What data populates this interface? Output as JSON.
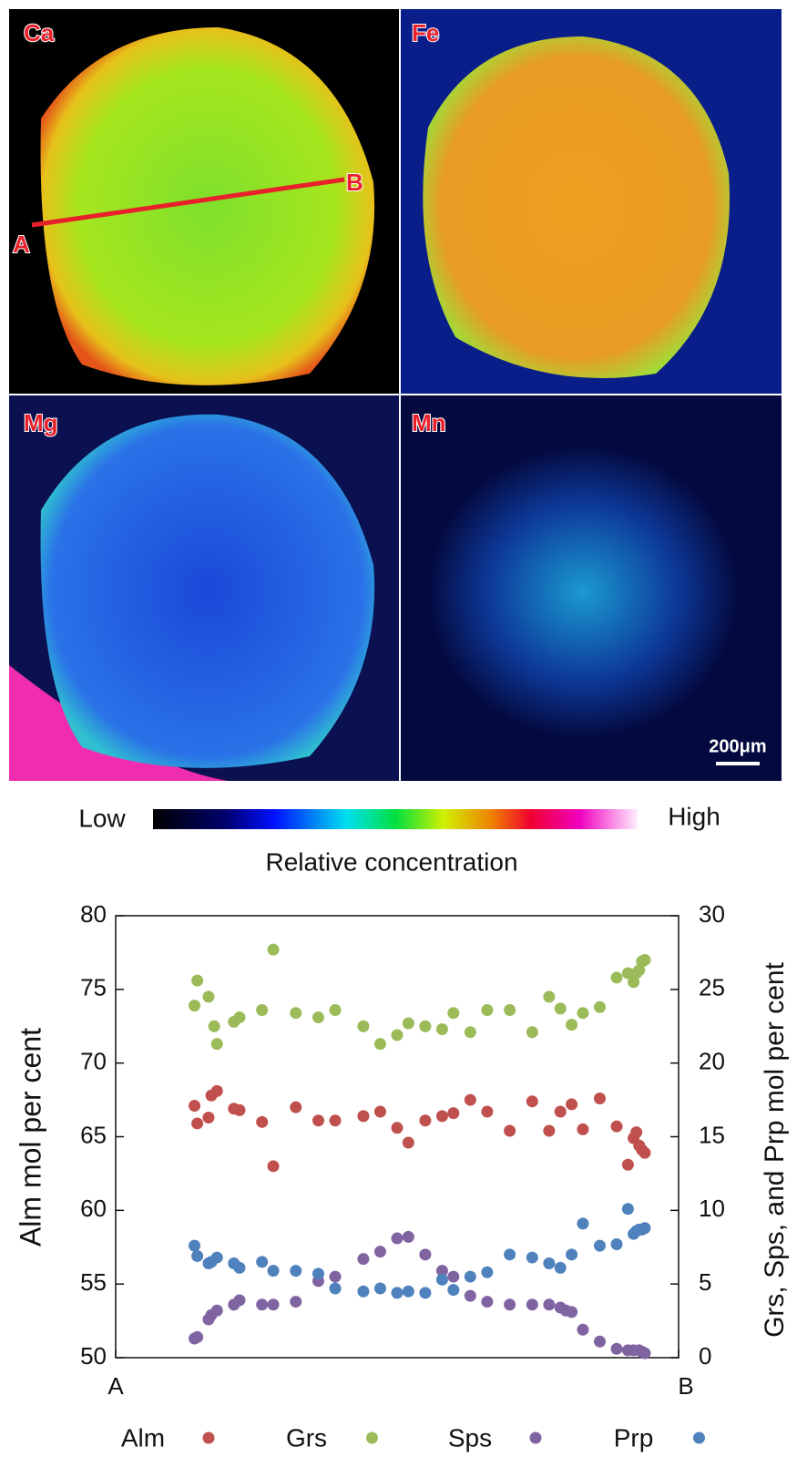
{
  "maps": {
    "panels": [
      {
        "label": "Ca"
      },
      {
        "label": "Fe"
      },
      {
        "label": "Mg"
      },
      {
        "label": "Mn"
      }
    ],
    "profile_start": "A",
    "profile_end": "B",
    "scale_bar": "200μm"
  },
  "colorbar": {
    "low": "Low",
    "high": "High",
    "label": "Relative concentration"
  },
  "chart_data": {
    "type": "scatter",
    "ylabel": "Alm mol per cent",
    "y2label": "Grs, Sps, and Prp mol per cent",
    "xlim": [
      0,
      1
    ],
    "xticks": [
      {
        "value": 0,
        "label": "A"
      },
      {
        "value": 1,
        "label": "B"
      }
    ],
    "ylim": [
      50,
      80
    ],
    "yticks": [
      50,
      55,
      60,
      65,
      70,
      75,
      80
    ],
    "y2lim": [
      0,
      30
    ],
    "y2ticks": [
      0,
      5,
      10,
      15,
      20,
      25,
      30
    ],
    "legend": "bottom",
    "series": [
      {
        "name": "Alm",
        "color": "#c0504d",
        "x": [
          0.14,
          0.145,
          0.165,
          0.17,
          0.18,
          0.21,
          0.22,
          0.26,
          0.28,
          0.32,
          0.36,
          0.39,
          0.44,
          0.47,
          0.5,
          0.52,
          0.55,
          0.58,
          0.6,
          0.63,
          0.66,
          0.7,
          0.74,
          0.77,
          0.79,
          0.81,
          0.83,
          0.86,
          0.89,
          0.91,
          0.92,
          0.925,
          0.93,
          0.935,
          0.94
        ],
        "values": [
          67.1,
          65.9,
          66.3,
          67.8,
          68.1,
          66.9,
          66.8,
          66.0,
          63.0,
          67.0,
          66.1,
          66.1,
          66.4,
          66.7,
          65.6,
          64.6,
          66.1,
          66.4,
          66.6,
          67.5,
          66.7,
          65.4,
          67.4,
          65.4,
          66.7,
          67.2,
          65.5,
          67.6,
          65.7,
          63.1,
          64.9,
          65.3,
          64.4,
          64.1,
          63.9
        ]
      },
      {
        "name": "Grs",
        "color": "#9bbb59",
        "axis": "y2",
        "x": [
          0.14,
          0.145,
          0.165,
          0.175,
          0.18,
          0.21,
          0.22,
          0.26,
          0.28,
          0.32,
          0.36,
          0.39,
          0.44,
          0.47,
          0.5,
          0.52,
          0.55,
          0.58,
          0.6,
          0.63,
          0.66,
          0.7,
          0.74,
          0.77,
          0.79,
          0.81,
          0.83,
          0.86,
          0.89,
          0.91,
          0.92,
          0.925,
          0.93,
          0.935,
          0.94
        ],
        "values": [
          23.9,
          25.6,
          24.5,
          22.5,
          21.3,
          22.8,
          23.1,
          23.6,
          27.7,
          23.4,
          23.1,
          23.6,
          22.5,
          21.3,
          21.9,
          22.7,
          22.5,
          22.3,
          23.4,
          22.1,
          23.6,
          23.6,
          22.1,
          24.5,
          23.7,
          22.6,
          23.4,
          23.8,
          25.8,
          26.1,
          25.5,
          26.1,
          26.3,
          26.9,
          27.0
        ]
      },
      {
        "name": "Sps",
        "color": "#8064a2",
        "axis": "y2",
        "x": [
          0.14,
          0.145,
          0.165,
          0.17,
          0.18,
          0.21,
          0.22,
          0.26,
          0.28,
          0.32,
          0.36,
          0.39,
          0.44,
          0.47,
          0.5,
          0.52,
          0.55,
          0.58,
          0.6,
          0.63,
          0.66,
          0.7,
          0.74,
          0.77,
          0.79,
          0.8,
          0.81,
          0.83,
          0.86,
          0.89,
          0.91,
          0.92,
          0.93,
          0.935,
          0.94
        ],
        "values": [
          1.3,
          1.4,
          2.6,
          2.9,
          3.2,
          3.6,
          3.9,
          3.6,
          3.6,
          3.8,
          5.2,
          5.5,
          6.7,
          7.2,
          8.1,
          8.2,
          7.0,
          5.9,
          5.5,
          4.2,
          3.8,
          3.6,
          3.6,
          3.6,
          3.4,
          3.2,
          3.1,
          1.9,
          1.1,
          0.6,
          0.5,
          0.5,
          0.5,
          0.4,
          0.3
        ]
      },
      {
        "name": "Prp",
        "color": "#4f81bd",
        "axis": "y2",
        "x": [
          0.14,
          0.145,
          0.165,
          0.17,
          0.18,
          0.21,
          0.22,
          0.26,
          0.28,
          0.32,
          0.36,
          0.39,
          0.44,
          0.47,
          0.5,
          0.52,
          0.55,
          0.58,
          0.6,
          0.63,
          0.66,
          0.7,
          0.74,
          0.77,
          0.79,
          0.81,
          0.83,
          0.86,
          0.89,
          0.91,
          0.92,
          0.925,
          0.93,
          0.935,
          0.94
        ],
        "values": [
          7.6,
          6.9,
          6.4,
          6.5,
          6.8,
          6.4,
          6.1,
          6.5,
          5.9,
          5.9,
          5.7,
          4.7,
          4.5,
          4.7,
          4.4,
          4.5,
          4.4,
          5.3,
          4.6,
          5.5,
          5.8,
          7.0,
          6.8,
          6.4,
          6.1,
          7.0,
          9.1,
          7.6,
          7.7,
          10.1,
          8.4,
          8.6,
          8.7,
          8.7,
          8.8
        ]
      }
    ]
  }
}
